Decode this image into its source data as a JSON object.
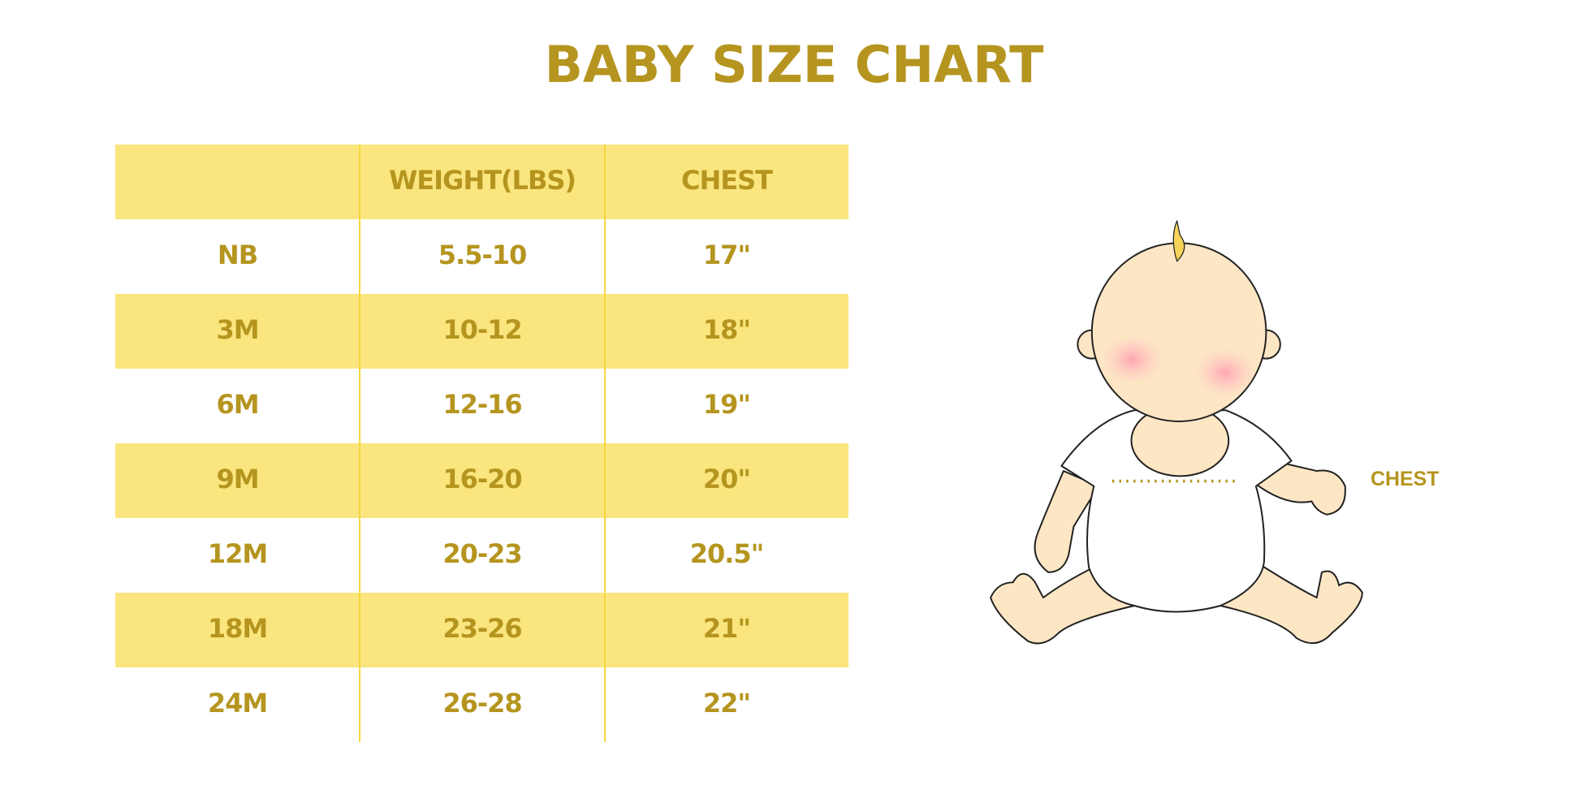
{
  "title": "BABY SIZE CHART",
  "table": {
    "header": [
      "WEIGHT(LBS)",
      "CHEST"
    ],
    "rows": [
      [
        "NB",
        "5.5-10",
        "17\""
      ],
      [
        "3M",
        "10-12",
        "18\""
      ],
      [
        "6M",
        "12-16",
        "19\""
      ],
      [
        "9M",
        "16-20",
        "20\""
      ],
      [
        "12M",
        "20-23",
        "20.5\""
      ],
      [
        "18M",
        "23-26",
        "21\""
      ],
      [
        "24M",
        "26-28",
        "22\""
      ]
    ]
  },
  "illustration": {
    "label": "CHEST"
  }
}
